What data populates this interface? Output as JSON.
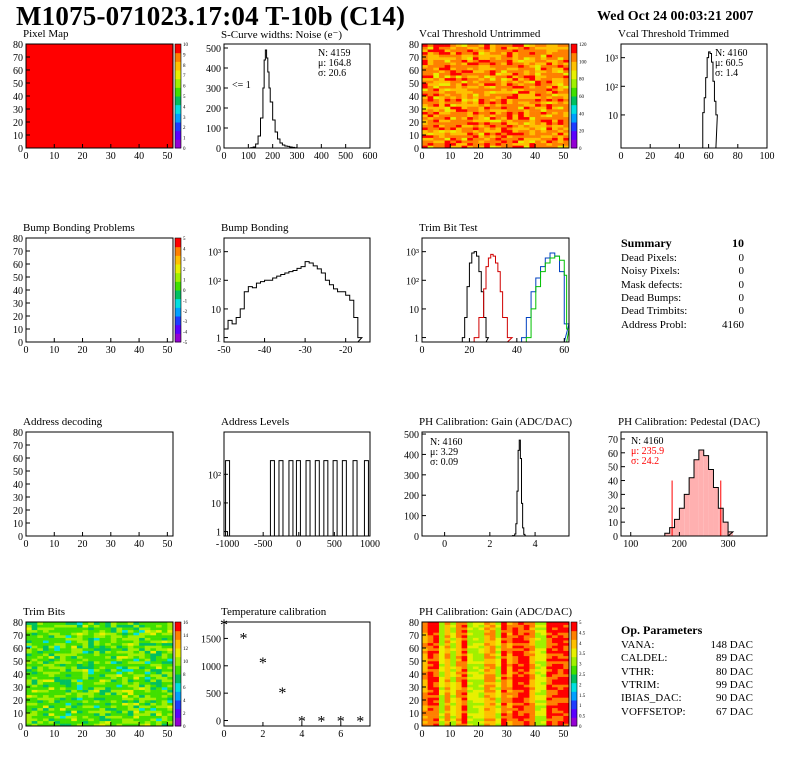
{
  "header": {
    "title": "M1075-071023.17:04 T-10b (C14)",
    "date": "Wed Oct 24 00:03:21 2007"
  },
  "colors": {
    "palette": [
      "#9400d3",
      "#5a00ff",
      "#1e3cff",
      "#00a0ff",
      "#00e0e0",
      "#00c060",
      "#40e000",
      "#a0f000",
      "#e8f000",
      "#ffc000",
      "#ff8000",
      "#ff0000"
    ],
    "trim_red": "#d00000",
    "trim_green": "#00c000",
    "trim_blue": "#0040c0",
    "ped_red": "#ff0000"
  },
  "panels": [
    {
      "id": "pixel_map",
      "title": "Pixel Map",
      "type": "heatmap",
      "x_ticks": [
        "0",
        "10",
        "20",
        "30",
        "40",
        "50"
      ],
      "y_ticks": [
        "0",
        "10",
        "20",
        "30",
        "40",
        "50",
        "60",
        "70",
        "80"
      ],
      "z_ticks": [
        "0",
        "1",
        "2",
        "3",
        "4",
        "5",
        "6",
        "7",
        "8",
        "9",
        "10"
      ],
      "fill": "uniform-red"
    },
    {
      "id": "scurve",
      "title": "S-Curve widths: Noise (e⁻)",
      "type": "hist",
      "x_ticks": [
        "0",
        "100",
        "200",
        "300",
        "400",
        "500",
        "600"
      ],
      "y_ticks": [
        "0",
        "100",
        "200",
        "300",
        "400",
        "500"
      ],
      "stats": [
        "N: 4159",
        "μ: 164.8",
        "σ: 20.6"
      ],
      "annotation": "<= 1"
    },
    {
      "id": "vcal_untrimmed",
      "title": "Vcal Threshold Untrimmed",
      "type": "heatmap",
      "x_ticks": [
        "0",
        "10",
        "20",
        "30",
        "40",
        "50"
      ],
      "y_ticks": [
        "0",
        "10",
        "20",
        "30",
        "40",
        "50",
        "60",
        "70",
        "80"
      ],
      "z_ticks": [
        "0",
        "20",
        "40",
        "60",
        "80",
        "100",
        "120"
      ],
      "fill": "noise-warm"
    },
    {
      "id": "vcal_trimmed",
      "title": "Vcal Threshold Trimmed",
      "type": "hist",
      "x_ticks": [
        "0",
        "20",
        "40",
        "60",
        "80",
        "100"
      ],
      "y_ticks": [
        "10",
        "10²",
        "10³"
      ],
      "stats": [
        "N: 4160",
        "μ: 60.5",
        "σ: 1.4"
      ]
    },
    {
      "id": "bump_problems",
      "title": "Bump Bonding Problems",
      "type": "heatmap",
      "x_ticks": [
        "0",
        "10",
        "20",
        "30",
        "40",
        "50"
      ],
      "y_ticks": [
        "0",
        "10",
        "20",
        "30",
        "40",
        "50",
        "60",
        "70",
        "80"
      ],
      "z_ticks": [
        "-5",
        "-4",
        "-3",
        "-2",
        "-1",
        "0",
        "1",
        "2",
        "3",
        "4",
        "5"
      ],
      "fill": "empty"
    },
    {
      "id": "bump_bonding",
      "title": "Bump Bonding",
      "type": "hist",
      "x_ticks": [
        "-50",
        "-40",
        "-30",
        "-20"
      ],
      "y_ticks": [
        "1",
        "10",
        "10²",
        "10³"
      ]
    },
    {
      "id": "trim_bit_test",
      "title": "Trim Bit Test",
      "type": "hist",
      "x_ticks": [
        "0",
        "20",
        "40",
        "60"
      ],
      "y_ticks": [
        "1",
        "10",
        "10²",
        "10³"
      ]
    },
    {
      "id": "address_decoding",
      "title": "Address decoding",
      "type": "heatmap",
      "x_ticks": [
        "0",
        "10",
        "20",
        "30",
        "40",
        "50"
      ],
      "y_ticks": [
        "0",
        "10",
        "20",
        "30",
        "40",
        "50",
        "60",
        "70",
        "80"
      ],
      "fill": "empty"
    },
    {
      "id": "address_levels",
      "title": "Address Levels",
      "type": "hist",
      "x_ticks": [
        "-1000",
        "-500",
        "0",
        "500",
        "1000"
      ],
      "y_ticks": [
        "1",
        "10",
        "10²"
      ]
    },
    {
      "id": "ph_gain_hist",
      "title": "PH Calibration: Gain (ADC/DAC)",
      "type": "hist",
      "x_ticks": [
        "0",
        "2",
        "4"
      ],
      "y_ticks": [
        "0",
        "100",
        "200",
        "300",
        "400",
        "500"
      ],
      "stats": [
        "N: 4160",
        "μ: 3.29",
        "σ: 0.09"
      ]
    },
    {
      "id": "ph_pedestal",
      "title": "PH Calibration: Pedestal (DAC)",
      "type": "hist",
      "x_ticks": [
        "100",
        "200",
        "300"
      ],
      "y_ticks": [
        "0",
        "10",
        "20",
        "30",
        "40",
        "50",
        "60",
        "70"
      ],
      "stats": [
        "N: 4160",
        "μ: 235.9",
        "σ: 24.2"
      ]
    },
    {
      "id": "trim_bits",
      "title": "Trim Bits",
      "type": "heatmap",
      "x_ticks": [
        "0",
        "10",
        "20",
        "30",
        "40",
        "50"
      ],
      "y_ticks": [
        "0",
        "10",
        "20",
        "30",
        "40",
        "50",
        "60",
        "70",
        "80"
      ],
      "z_ticks": [
        "0",
        "2",
        "4",
        "6",
        "8",
        "10",
        "12",
        "14",
        "16"
      ],
      "fill": "noise-green"
    },
    {
      "id": "temperature",
      "title": "Temperature calibration",
      "type": "scatter",
      "x_ticks": [
        "0",
        "2",
        "4",
        "6"
      ],
      "y_ticks": [
        "0",
        "500",
        "1000",
        "1500"
      ]
    },
    {
      "id": "ph_gain_map",
      "title": "PH Calibration: Gain (ADC/DAC)",
      "type": "heatmap",
      "x_ticks": [
        "0",
        "10",
        "20",
        "30",
        "40",
        "50"
      ],
      "y_ticks": [
        "0",
        "10",
        "20",
        "30",
        "40",
        "50",
        "60",
        "70",
        "80"
      ],
      "z_ticks": [
        "0",
        "0.5",
        "1",
        "1.5",
        "2",
        "2.5",
        "3",
        "3.5",
        "4",
        "4.5",
        "5"
      ],
      "fill": "noise-stripes"
    }
  ],
  "summary": {
    "title": "Summary",
    "total": "10",
    "rows": [
      {
        "label": "Dead Pixels:",
        "value": "0"
      },
      {
        "label": "Noisy Pixels:",
        "value": "0"
      },
      {
        "label": "Mask defects:",
        "value": "0"
      },
      {
        "label": "Dead Bumps:",
        "value": "0"
      },
      {
        "label": "Dead Trimbits:",
        "value": "0"
      },
      {
        "label": "Address Probl:",
        "value": "4160"
      }
    ]
  },
  "op_params": {
    "title": "Op. Parameters",
    "rows": [
      {
        "label": "VANA:",
        "value": "148 DAC"
      },
      {
        "label": "CALDEL:",
        "value": "89 DAC"
      },
      {
        "label": "VTHR:",
        "value": "80 DAC"
      },
      {
        "label": "VTRIM:",
        "value": "99 DAC"
      },
      {
        "label": "IBIAS_DAC:",
        "value": "90 DAC"
      },
      {
        "label": "VOFFSETOP:",
        "value": "67 DAC"
      }
    ]
  },
  "chart_data": [
    {
      "id": "pixel_map",
      "type": "heatmap",
      "title": "Pixel Map",
      "xlim": [
        0,
        52
      ],
      "ylim": [
        0,
        80
      ],
      "zlim": [
        0,
        10
      ],
      "description_value": "all pixels at 10 (red)"
    },
    {
      "id": "scurve",
      "type": "bar",
      "title": "S-Curve widths: Noise (e⁻)",
      "xlim": [
        0,
        600
      ],
      "ylim": [
        0,
        520
      ],
      "x": [
        110,
        120,
        130,
        140,
        150,
        160,
        165,
        170,
        175,
        180,
        185,
        190,
        200,
        210,
        220,
        230,
        240,
        250,
        260,
        270,
        280,
        290
      ],
      "values": [
        2,
        5,
        20,
        60,
        150,
        300,
        440,
        490,
        450,
        380,
        300,
        230,
        140,
        80,
        45,
        25,
        15,
        10,
        8,
        5,
        3,
        1
      ]
    },
    {
      "id": "vcal_untrimmed",
      "type": "heatmap",
      "title": "Vcal Threshold Untrimmed",
      "xlim": [
        0,
        52
      ],
      "ylim": [
        0,
        80
      ],
      "zlim": [
        0,
        130
      ]
    },
    {
      "id": "vcal_trimmed",
      "type": "bar",
      "title": "Vcal Threshold Trimmed",
      "xlim": [
        0,
        100
      ],
      "log_y": true,
      "x": [
        56,
        57,
        58,
        59,
        60,
        61,
        62,
        63,
        64,
        65
      ],
      "values": [
        12,
        40,
        200,
        1000,
        1600,
        1400,
        700,
        150,
        30,
        10
      ]
    },
    {
      "id": "bump_problems",
      "type": "heatmap",
      "title": "Bump Bonding Problems",
      "xlim": [
        0,
        52
      ],
      "ylim": [
        0,
        80
      ],
      "zlim": [
        -5,
        5
      ]
    },
    {
      "id": "bump_bonding",
      "type": "bar",
      "title": "Bump Bonding",
      "xlim": [
        -50,
        -14
      ],
      "log_y": true,
      "x": [
        -50,
        -49,
        -48,
        -47,
        -46,
        -45,
        -44,
        -43,
        -42,
        -41,
        -40,
        -39,
        -38,
        -37,
        -36,
        -35,
        -34,
        -33,
        -32,
        -31,
        -30,
        -29,
        -28,
        -27,
        -26,
        -25,
        -24,
        -23,
        -22,
        -21,
        -20,
        -19,
        -18,
        -17
      ],
      "values": [
        2,
        4,
        3,
        5,
        10,
        40,
        60,
        55,
        80,
        90,
        100,
        100,
        120,
        140,
        160,
        180,
        200,
        220,
        260,
        300,
        450,
        400,
        320,
        250,
        180,
        100,
        70,
        50,
        40,
        40,
        30,
        20,
        5,
        1
      ]
    },
    {
      "id": "trim_bit_test",
      "type": "line",
      "title": "Trim Bit Test",
      "xlim": [
        0,
        62
      ],
      "log_y": true,
      "series": [
        {
          "color": "black",
          "x": [
            17,
            18,
            19,
            20,
            21,
            22,
            23,
            24,
            25,
            26,
            27
          ],
          "values": [
            1,
            5,
            60,
            400,
            900,
            1000,
            700,
            200,
            40,
            5,
            1
          ]
        },
        {
          "color": "red",
          "x": [
            22,
            24,
            26,
            27,
            28,
            29,
            30,
            31,
            32,
            33,
            34,
            36
          ],
          "values": [
            1,
            5,
            50,
            300,
            600,
            800,
            700,
            400,
            200,
            40,
            5,
            1
          ]
        },
        {
          "color": "blue",
          "x": [
            42,
            44,
            46,
            48,
            50,
            52,
            54,
            56,
            58,
            60
          ],
          "values": [
            1,
            5,
            40,
            120,
            300,
            600,
            900,
            700,
            200,
            3
          ]
        },
        {
          "color": "green",
          "x": [
            44,
            46,
            48,
            50,
            52,
            54,
            56,
            58,
            60,
            61
          ],
          "values": [
            1,
            10,
            60,
            200,
            400,
            600,
            700,
            500,
            150,
            2
          ]
        }
      ]
    },
    {
      "id": "address_decoding",
      "type": "heatmap",
      "title": "Address decoding",
      "xlim": [
        0,
        52
      ],
      "ylim": [
        0,
        80
      ]
    },
    {
      "id": "address_levels",
      "type": "bar",
      "title": "Address Levels",
      "xlim": [
        -1050,
        1000
      ],
      "log_y": true,
      "x": [
        -1000,
        -370,
        -250,
        -110,
        -5,
        130,
        260,
        380,
        510,
        640,
        790,
        950
      ],
      "values": [
        300,
        300,
        300,
        300,
        300,
        300,
        300,
        300,
        300,
        300,
        300,
        300
      ]
    },
    {
      "id": "ph_gain_hist",
      "type": "bar",
      "title": "PH Calibration: Gain (ADC/DAC)",
      "xlim": [
        -1,
        5.5
      ],
      "ylim": [
        0,
        510
      ],
      "x": [
        3.0,
        3.1,
        3.15,
        3.2,
        3.25,
        3.3,
        3.35,
        3.4,
        3.45,
        3.5,
        3.55
      ],
      "values": [
        2,
        10,
        60,
        220,
        420,
        470,
        380,
        160,
        40,
        8,
        1
      ]
    },
    {
      "id": "ph_pedestal",
      "type": "bar",
      "title": "PH Calibration: Pedestal (DAC)",
      "xlim": [
        80,
        380
      ],
      "ylim": [
        0,
        75
      ],
      "x": [
        170,
        180,
        190,
        200,
        210,
        220,
        230,
        240,
        250,
        260,
        270,
        280,
        290,
        300
      ],
      "values": [
        2,
        6,
        12,
        20,
        30,
        42,
        55,
        62,
        58,
        48,
        35,
        20,
        10,
        3
      ]
    },
    {
      "id": "trim_bits",
      "type": "heatmap",
      "title": "Trim Bits",
      "xlim": [
        0,
        52
      ],
      "ylim": [
        0,
        80
      ],
      "zlim": [
        0,
        16
      ]
    },
    {
      "id": "temperature",
      "type": "scatter",
      "title": "Temperature calibration",
      "xlim": [
        0,
        7.5
      ],
      "ylim": [
        -100,
        1800
      ],
      "x": [
        0,
        1,
        2,
        3,
        4,
        5,
        6,
        7
      ],
      "values": [
        1750,
        1500,
        1050,
        500,
        -20,
        -20,
        -20,
        -20
      ]
    },
    {
      "id": "ph_gain_map",
      "type": "heatmap",
      "title": "PH Calibration: Gain (ADC/DAC)",
      "xlim": [
        0,
        52
      ],
      "ylim": [
        0,
        80
      ],
      "zlim": [
        0,
        5
      ]
    }
  ]
}
